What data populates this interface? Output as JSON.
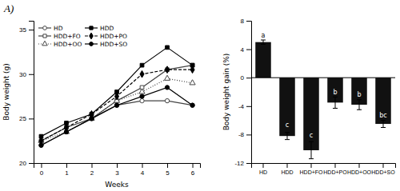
{
  "chart_data": [
    {
      "type": "line",
      "title": "A)",
      "x_label": "Weeks",
      "y_label": "Body weight (g)",
      "x": [
        0,
        1,
        2,
        3,
        4,
        5,
        6
      ],
      "xlim": [
        -0.3,
        6.3
      ],
      "xticks": [
        0,
        1,
        2,
        3,
        4,
        5,
        6
      ],
      "ylim": [
        20,
        36
      ],
      "yticks": [
        20,
        25,
        30,
        35
      ],
      "legend": "upper left",
      "series": [
        {
          "name": "HD",
          "color": "#444444",
          "marker": "circle-open",
          "line_style": "solid",
          "values": [
            22.0,
            23.5,
            25.0,
            26.5,
            27.0,
            27.0,
            26.5
          ]
        },
        {
          "name": "HDD+FO",
          "color": "#444444",
          "marker": "square-open",
          "line_style": "solid",
          "values": [
            22.5,
            24.0,
            25.0,
            27.0,
            28.5,
            30.5,
            31.0
          ]
        },
        {
          "name": "HDD+OO",
          "color": "#444444",
          "marker": "triangle-open",
          "line_style": "dotted",
          "values": [
            22.5,
            23.5,
            25.0,
            27.0,
            28.0,
            29.5,
            29.0
          ]
        },
        {
          "name": "HDD",
          "color": "#000000",
          "marker": "square",
          "line_style": "solid",
          "values": [
            23.0,
            24.5,
            25.5,
            28.0,
            31.0,
            33.0,
            31.0
          ]
        },
        {
          "name": "HDD+PO",
          "color": "#000000",
          "marker": "diamond",
          "line_style": "dashed",
          "values": [
            22.5,
            24.0,
            25.5,
            27.5,
            30.0,
            30.5,
            30.5
          ]
        },
        {
          "name": "HDD+SO",
          "color": "#000000",
          "marker": "circle",
          "line_style": "solid",
          "values": [
            22.0,
            23.5,
            25.0,
            26.5,
            27.5,
            28.5,
            26.5
          ]
        }
      ]
    },
    {
      "type": "bar",
      "y_label": "Body weight gain (%)",
      "categories": [
        "HD",
        "HDD",
        "HDD+FO",
        "HDD+PO",
        "HDD+OO",
        "HDD+SO"
      ],
      "values": [
        5.0,
        -8.2,
        -10.2,
        -3.5,
        -3.8,
        -6.5
      ],
      "errors": [
        0.3,
        0.5,
        1.2,
        0.8,
        0.7,
        0.5
      ],
      "color": "#111111",
      "ylim": [
        -12,
        8
      ],
      "yticks": [
        -12,
        -8,
        -4,
        0,
        4,
        8
      ],
      "annotations": [
        {
          "x": "HD",
          "y": 5.5,
          "text": "a"
        },
        {
          "x": "HDD",
          "y": -7.0,
          "text": "c"
        },
        {
          "x": "HDD+FO",
          "y": -8.5,
          "text": "c"
        },
        {
          "x": "HDD+PO",
          "y": -2.5,
          "text": "b"
        },
        {
          "x": "HDD+OO",
          "y": -2.8,
          "text": "b"
        },
        {
          "x": "HDD+SO",
          "y": -5.7,
          "text": "bc"
        }
      ]
    }
  ]
}
